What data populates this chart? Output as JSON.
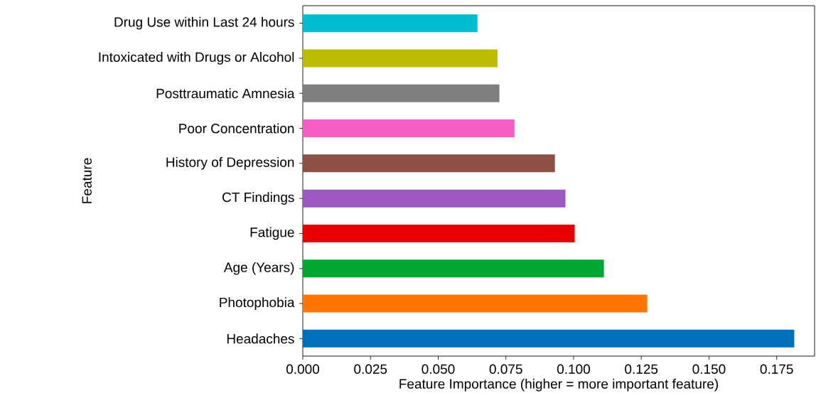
{
  "chart_data": {
    "type": "bar",
    "orientation": "horizontal",
    "categories": [
      "Drug Use within Last 24 hours",
      "Intoxicated with Drugs or Alcohol",
      "Posttraumatic Amnesia",
      "Poor Concentration",
      "History of Depression",
      "CT Findings",
      "Fatigue",
      "Age (Years)",
      "Photophobia",
      "Headaches"
    ],
    "values": [
      0.0645,
      0.0719,
      0.0726,
      0.0782,
      0.0931,
      0.097,
      0.1004,
      0.1112,
      0.1272,
      0.1815
    ],
    "colors": [
      "#00bcd0",
      "#bcbd00",
      "#7f7f7f",
      "#f55fc5",
      "#8c5044",
      "#9b59c0",
      "#e60000",
      "#00a832",
      "#ff7500",
      "#0070b8"
    ],
    "xlim": [
      0,
      0.189
    ],
    "xticks": [
      {
        "value": 0,
        "label": "0.000"
      },
      {
        "value": 0.025,
        "label": "0.025"
      },
      {
        "value": 0.05,
        "label": "0.050"
      },
      {
        "value": 0.075,
        "label": "0.075"
      },
      {
        "value": 0.1,
        "label": "0.100"
      },
      {
        "value": 0.125,
        "label": "0.125"
      },
      {
        "value": 0.15,
        "label": "0.150"
      },
      {
        "value": 0.175,
        "label": "0.175"
      }
    ],
    "xlabel": "Feature Importance (higher = more important feature)",
    "ylabel": "Feature"
  }
}
